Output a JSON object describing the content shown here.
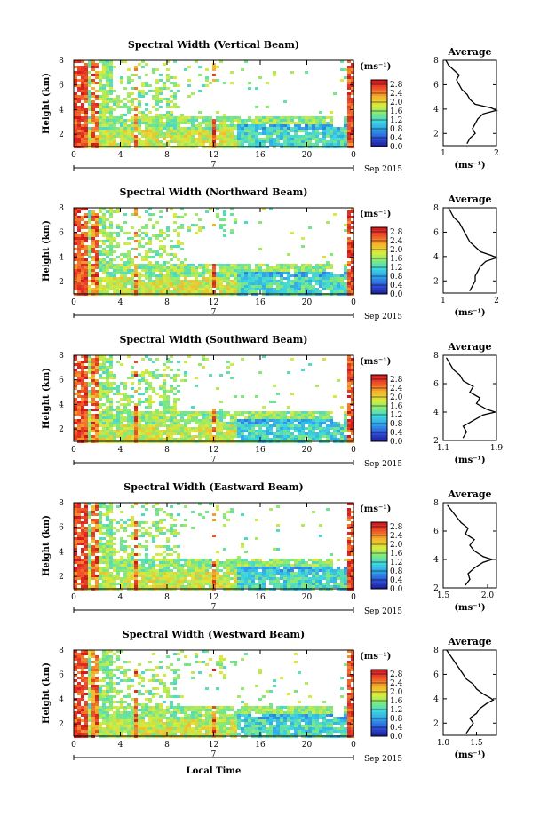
{
  "chart_data": [
    {
      "type": "heatmap",
      "title": "Spectral Width (Vertical Beam)",
      "ylabel": "Height (km)",
      "xlim": [
        0,
        24
      ],
      "ylim": [
        1,
        8
      ],
      "x_ticks": [
        "0",
        "4",
        "8",
        "12",
        "16",
        "20",
        "0"
      ],
      "y_ticks": [
        "2",
        "4",
        "6",
        "8"
      ],
      "day_label": "7",
      "date_label": "Sep 2015",
      "colorbar": {
        "unit": "(ms⁻¹)",
        "ticks": [
          "0.0",
          "0.4",
          "0.8",
          "1.2",
          "1.6",
          "2.0",
          "2.4",
          "2.8"
        ],
        "range": [
          0,
          3
        ]
      },
      "profile": {
        "title": "Average",
        "xlabel": "(ms⁻¹)",
        "xlim": [
          1,
          2
        ],
        "x_ticks": [
          "1",
          "2"
        ],
        "ylim": [
          1,
          8
        ],
        "y_ticks": [
          "2",
          "4",
          "6",
          "8"
        ],
        "heights": [
          1.2,
          1.6,
          2.0,
          2.4,
          2.8,
          3.2,
          3.6,
          3.9,
          4.1,
          4.4,
          4.8,
          5.2,
          5.6,
          6.0,
          6.4,
          6.8,
          7.2,
          7.6,
          8.0
        ],
        "values": [
          1.45,
          1.5,
          1.6,
          1.55,
          1.6,
          1.65,
          1.75,
          2.0,
          1.9,
          1.6,
          1.5,
          1.45,
          1.35,
          1.3,
          1.25,
          1.3,
          1.2,
          1.1,
          1.05
        ]
      }
    },
    {
      "type": "heatmap",
      "title": "Spectral Width (Northward Beam)",
      "ylabel": "Height (km)",
      "xlim": [
        0,
        24
      ],
      "ylim": [
        1,
        8
      ],
      "x_ticks": [
        "0",
        "4",
        "8",
        "12",
        "16",
        "20",
        "0"
      ],
      "y_ticks": [
        "2",
        "4",
        "6",
        "8"
      ],
      "day_label": "7",
      "date_label": "Sep 2015",
      "colorbar": {
        "unit": "(ms⁻¹)",
        "ticks": [
          "0.0",
          "0.4",
          "0.8",
          "1.2",
          "1.6",
          "2.0",
          "2.4",
          "2.8"
        ],
        "range": [
          0,
          3
        ]
      },
      "profile": {
        "title": "Average",
        "xlabel": "(ms⁻¹)",
        "xlim": [
          1,
          2
        ],
        "x_ticks": [
          "1",
          "2"
        ],
        "ylim": [
          1,
          8
        ],
        "y_ticks": [
          "2",
          "4",
          "6",
          "8"
        ],
        "heights": [
          1.2,
          1.6,
          2.0,
          2.4,
          2.8,
          3.2,
          3.6,
          3.9,
          4.1,
          4.4,
          4.8,
          5.2,
          5.6,
          6.0,
          6.4,
          6.8,
          7.2,
          7.6,
          8.0
        ],
        "values": [
          1.5,
          1.55,
          1.6,
          1.6,
          1.65,
          1.7,
          1.8,
          2.0,
          1.9,
          1.7,
          1.6,
          1.5,
          1.45,
          1.4,
          1.35,
          1.3,
          1.2,
          1.15,
          1.1
        ]
      }
    },
    {
      "type": "heatmap",
      "title": "Spectral Width (Southward Beam)",
      "ylabel": "Height (km)",
      "xlim": [
        0,
        24
      ],
      "ylim": [
        1,
        8
      ],
      "x_ticks": [
        "0",
        "4",
        "8",
        "12",
        "16",
        "20",
        "0"
      ],
      "y_ticks": [
        "2",
        "4",
        "6",
        "8"
      ],
      "day_label": "7",
      "date_label": "Sep 2015",
      "colorbar": {
        "unit": "(ms⁻¹)",
        "ticks": [
          "0.0",
          "0.4",
          "0.8",
          "1.2",
          "1.6",
          "2.0",
          "2.4",
          "2.8"
        ],
        "range": [
          0,
          3
        ]
      },
      "profile": {
        "title": "Average",
        "xlabel": "(ms⁻¹)",
        "xlim": [
          1.1,
          1.9
        ],
        "x_ticks": [
          "1.1",
          "1.9"
        ],
        "ylim": [
          2,
          8
        ],
        "y_ticks": [
          "2",
          "4",
          "6",
          "8"
        ],
        "heights": [
          2.2,
          2.6,
          3.0,
          3.4,
          3.8,
          4.0,
          4.2,
          4.6,
          5.0,
          5.4,
          5.8,
          6.2,
          6.6,
          7.0,
          7.4,
          7.8
        ],
        "values": [
          1.4,
          1.45,
          1.4,
          1.55,
          1.7,
          1.88,
          1.75,
          1.6,
          1.65,
          1.5,
          1.55,
          1.4,
          1.35,
          1.25,
          1.2,
          1.15
        ]
      }
    },
    {
      "type": "heatmap",
      "title": "Spectral Width (Eastward Beam)",
      "ylabel": "Height (km)",
      "xlim": [
        0,
        24
      ],
      "ylim": [
        1,
        8
      ],
      "x_ticks": [
        "0",
        "4",
        "8",
        "12",
        "16",
        "20",
        "0"
      ],
      "y_ticks": [
        "2",
        "4",
        "6",
        "8"
      ],
      "day_label": "7",
      "date_label": "Sep 2015",
      "colorbar": {
        "unit": "(ms⁻¹)",
        "ticks": [
          "0.0",
          "0.4",
          "0.8",
          "1.2",
          "1.6",
          "2.0",
          "2.4",
          "2.8"
        ],
        "range": [
          0,
          3
        ]
      },
      "profile": {
        "title": "Average",
        "xlabel": "(ms⁻¹)",
        "xlim": [
          1.5,
          2.1
        ],
        "x_ticks": [
          "1.5",
          "2.0"
        ],
        "ylim": [
          2,
          8
        ],
        "y_ticks": [
          "2",
          "4",
          "6",
          "8"
        ],
        "heights": [
          2.2,
          2.6,
          3.0,
          3.4,
          3.8,
          4.0,
          4.2,
          4.6,
          5.0,
          5.4,
          5.8,
          6.2,
          6.6,
          7.0,
          7.4,
          7.8
        ],
        "values": [
          1.75,
          1.8,
          1.78,
          1.85,
          1.95,
          2.05,
          1.95,
          1.85,
          1.8,
          1.85,
          1.75,
          1.78,
          1.7,
          1.65,
          1.6,
          1.55
        ]
      }
    },
    {
      "type": "heatmap",
      "title": "Spectral Width (Westward Beam)",
      "ylabel": "Height (km)",
      "xlabel": "Local Time",
      "xlim": [
        0,
        24
      ],
      "ylim": [
        1,
        8
      ],
      "x_ticks": [
        "0",
        "4",
        "8",
        "12",
        "16",
        "20",
        "0"
      ],
      "y_ticks": [
        "2",
        "4",
        "6",
        "8"
      ],
      "day_label": "7",
      "date_label": "Sep 2015",
      "colorbar": {
        "unit": "(ms⁻¹)",
        "ticks": [
          "0.0",
          "0.4",
          "0.8",
          "1.2",
          "1.6",
          "2.0",
          "2.4",
          "2.8"
        ],
        "range": [
          0,
          3
        ]
      },
      "profile": {
        "title": "Average",
        "xlabel": "(ms⁻¹)",
        "xlim": [
          1.0,
          1.8
        ],
        "x_ticks": [
          "1.0",
          "1.5"
        ],
        "ylim": [
          1,
          8
        ],
        "y_ticks": [
          "2",
          "4",
          "6",
          "8"
        ],
        "heights": [
          1.2,
          1.6,
          2.0,
          2.4,
          2.8,
          3.2,
          3.6,
          3.9,
          4.1,
          4.4,
          4.8,
          5.2,
          5.6,
          6.0,
          6.4,
          6.8,
          7.2,
          7.6,
          8.0
        ],
        "values": [
          1.35,
          1.4,
          1.45,
          1.4,
          1.5,
          1.55,
          1.65,
          1.75,
          1.7,
          1.6,
          1.5,
          1.45,
          1.35,
          1.3,
          1.25,
          1.2,
          1.15,
          1.1,
          1.05
        ]
      }
    }
  ]
}
